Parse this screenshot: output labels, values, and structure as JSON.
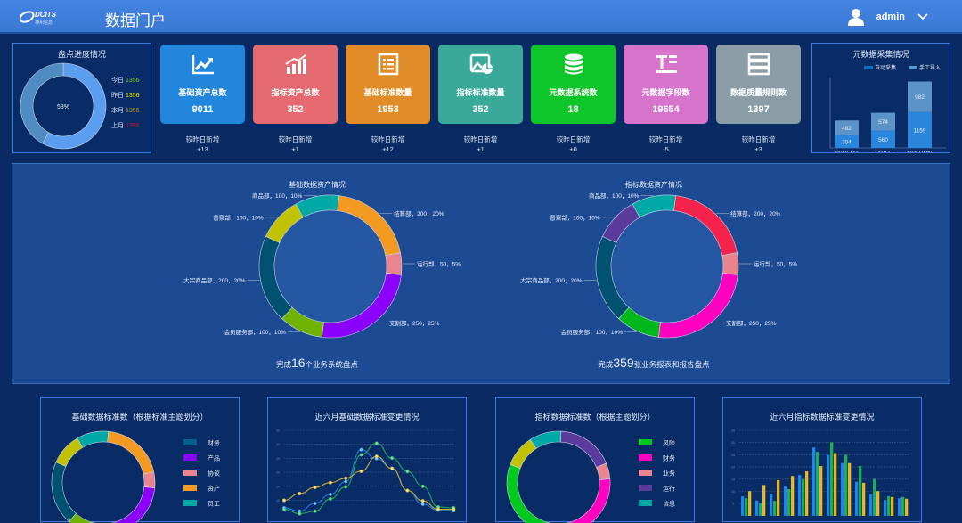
{
  "header": {
    "logo_text": "DCITS",
    "logo_sub": "神州信息",
    "title": "数据门户",
    "user": "admin"
  },
  "progress": {
    "title": "盘点进度情况",
    "percent": 58,
    "center_label": "58%",
    "colors": {
      "done": "#5b9ef0",
      "rest": "#4e8cc2"
    },
    "legend": [
      {
        "label": "今日",
        "value": "1356",
        "color": "#7ed321"
      },
      {
        "label": "昨日",
        "value": "1356",
        "color": "#f2e500"
      },
      {
        "label": "本月",
        "value": "1356",
        "color": "#d68c2e"
      },
      {
        "label": "上月",
        "value": "1356",
        "color": "#d3103c"
      }
    ]
  },
  "cards": [
    {
      "icon": "line-chart-icon",
      "label": "基础资产总数",
      "value": "9011",
      "delta_label": "较昨日新增",
      "delta": "+13",
      "color": "#2386dd"
    },
    {
      "icon": "bar-chart-icon",
      "label": "指标资产总数",
      "value": "352",
      "delta_label": "较昨日新增",
      "delta": "+1",
      "color": "#e46a6f"
    },
    {
      "icon": "list-icon",
      "label": "基础标准数量",
      "value": "1953",
      "delta_label": "较昨日新增",
      "delta": "+12",
      "color": "#e08c28"
    },
    {
      "icon": "image-chart-icon",
      "label": "指标标准数量",
      "value": "352",
      "delta_label": "较昨日新增",
      "delta": "+1",
      "color": "#3aa99a"
    },
    {
      "icon": "database-icon",
      "label": "元数据系统数",
      "value": "18",
      "delta_label": "较昨日新增",
      "delta": "+0",
      "color": "#0ec52a"
    },
    {
      "icon": "text-field-icon",
      "label": "元数据字段数",
      "value": "19654",
      "delta_label": "较昨日新增",
      "delta": "-5",
      "color": "#d674cc"
    },
    {
      "icon": "server-icon",
      "label": "数据质量规则数",
      "value": "1397",
      "delta_label": "较昨日新增",
      "delta": "+3",
      "color": "#8a9da6"
    }
  ],
  "chart_data": [
    {
      "type": "bar",
      "stacked": true,
      "title": "元数据采集情况",
      "categories": [
        "SCHEMA",
        "TABLE",
        "COLUMN"
      ],
      "series": [
        {
          "name": "自动采集",
          "values": [
            304,
            560,
            1159
          ],
          "color": "#2a86dc"
        },
        {
          "name": "手工导入",
          "values": [
            482,
            574,
            982
          ],
          "color": "#5b93c6"
        }
      ],
      "legend": "top-right"
    },
    {
      "type": "pie",
      "donut": true,
      "title": "基础数据资产情况",
      "footer_prefix": "完成",
      "footer_number": "16",
      "footer_suffix": "个业务系统盘点",
      "slices": [
        {
          "name": "结算部",
          "value": 200,
          "pct": "20%",
          "color": "#f39a22"
        },
        {
          "name": "运行部",
          "value": 50,
          "pct": "5%",
          "color": "#ea8590"
        },
        {
          "name": "交割部",
          "value": 250,
          "pct": "25%",
          "color": "#8a00fa"
        },
        {
          "name": "会员服务部",
          "value": 100,
          "pct": "10%",
          "color": "#6fb300"
        },
        {
          "name": "大宗商品部",
          "value": 200,
          "pct": "20%",
          "color": "#00506f"
        },
        {
          "name": "督察部",
          "value": 100,
          "pct": "10%",
          "color": "#c3c200"
        },
        {
          "name": "商品部",
          "value": 100,
          "pct": "10%",
          "color": "#00a8a6"
        }
      ]
    },
    {
      "type": "pie",
      "donut": true,
      "title": "指标数据资产情况",
      "footer_prefix": "完成",
      "footer_number": "359",
      "footer_suffix": "张业务报表和报告盘点",
      "slices": [
        {
          "name": "结算部",
          "value": 200,
          "pct": "20%",
          "color": "#f5224b"
        },
        {
          "name": "运行部",
          "value": 50,
          "pct": "5%",
          "color": "#e9848f"
        },
        {
          "name": "交割部",
          "value": 250,
          "pct": "25%",
          "color": "#ff00c0"
        },
        {
          "name": "会员服务部",
          "value": 100,
          "pct": "10%",
          "color": "#00b81c"
        },
        {
          "name": "大宗商品部",
          "value": 200,
          "pct": "20%",
          "color": "#00506f"
        },
        {
          "name": "督察部",
          "value": 100,
          "pct": "10%",
          "color": "#5a3b9c"
        },
        {
          "name": "商品部",
          "value": 100,
          "pct": "10%",
          "color": "#00a8a6"
        }
      ]
    },
    {
      "type": "pie",
      "donut": true,
      "title": "基础数据标准数（根据标准主题划分）",
      "legend": "right",
      "slices": [
        {
          "name": "资产",
          "value": 20,
          "color": "#f39a22"
        },
        {
          "name": "协议",
          "value": 5,
          "color": "#ea8590"
        },
        {
          "name": "产品",
          "value": 25,
          "color": "#8a00fa"
        },
        {
          "name": "",
          "value": 10,
          "color": "#6fb300"
        },
        {
          "name": "财务",
          "value": 20,
          "color": "#00506f"
        },
        {
          "name": "",
          "value": 10,
          "color": "#c3c200"
        },
        {
          "name": "员工",
          "value": 10,
          "color": "#00a8a6"
        }
      ],
      "legend_items": [
        {
          "name": "财务",
          "color": "#00628a"
        },
        {
          "name": "产品",
          "color": "#8a00fa"
        },
        {
          "name": "协议",
          "color": "#ea8590"
        },
        {
          "name": "资产",
          "color": "#f39a22"
        },
        {
          "name": "员工",
          "color": "#00a8a6"
        }
      ]
    },
    {
      "type": "line",
      "title": "近六月基础数据标准变更情况",
      "ylim": [
        0,
        35
      ],
      "yticks": [
        "35",
        "30",
        "25",
        "20",
        "15",
        "10"
      ],
      "grid": true,
      "series": [
        {
          "color": "#1e7fe0",
          "values": [
            7.3,
            6.1,
            8.9,
            12.1,
            16.7,
            28.1,
            24.9,
            21.4,
            13.5,
            8.6,
            6.5,
            6.3
          ]
        },
        {
          "color": "#1fa858",
          "values": [
            6.8,
            5.2,
            6.1,
            10.5,
            14.8,
            26.3,
            30.4,
            25.1,
            20.3,
            15,
            7.6,
            7.3
          ]
        },
        {
          "color": "#c9a93a",
          "values": [
            10,
            12.4,
            14.6,
            16.3,
            17.9,
            20.4,
            25.7,
            21.4,
            13.5,
            9.8,
            6.8,
            6.8
          ]
        }
      ]
    },
    {
      "type": "pie",
      "donut": true,
      "title": "指标数据标准数（根据主题划分）",
      "legend": "right",
      "slices": [
        {
          "name": "运行",
          "value": 18,
          "color": "#5a3b9c"
        },
        {
          "name": "业务",
          "value": 5,
          "color": "#ea8590"
        },
        {
          "name": "财务",
          "value": 27,
          "color": "#ff00c0"
        },
        {
          "name": "风险",
          "value": 30,
          "color": "#00c81e"
        },
        {
          "name": "",
          "value": 10,
          "color": "#c3c200"
        },
        {
          "name": "信息",
          "value": 10,
          "color": "#00a8a6"
        }
      ],
      "legend_items": [
        {
          "name": "风险",
          "color": "#00c81e"
        },
        {
          "name": "财务",
          "color": "#ff00c0"
        },
        {
          "name": "业务",
          "color": "#ea8590"
        },
        {
          "name": "运行",
          "color": "#5a3b9c"
        },
        {
          "name": "信息",
          "color": "#00a8a6"
        }
      ]
    },
    {
      "type": "bar",
      "title": "近六月指标数据标准变更情况",
      "ylim": [
        0,
        35
      ],
      "yticks": [
        "35",
        "30",
        "25",
        "20",
        "15",
        "10",
        "5"
      ],
      "grid": true,
      "series": [
        {
          "color": "#1e86e8",
          "values": [
            7.9,
            6.3,
            9.1,
            12.3,
            16.7,
            28,
            24.9,
            21.6,
            13.9,
            8.7,
            6.5,
            7.2
          ]
        },
        {
          "color": "#1fae55",
          "values": [
            7.2,
            5.1,
            6.1,
            10.9,
            15.1,
            26.2,
            30.1,
            25,
            20.4,
            15.1,
            8,
            7.7
          ]
        },
        {
          "color": "#e8b820",
          "values": [
            10.1,
            12.6,
            14.6,
            16.3,
            18.2,
            20.4,
            25.7,
            21.6,
            13.5,
            10.1,
            7.7,
            7
          ]
        }
      ]
    }
  ]
}
